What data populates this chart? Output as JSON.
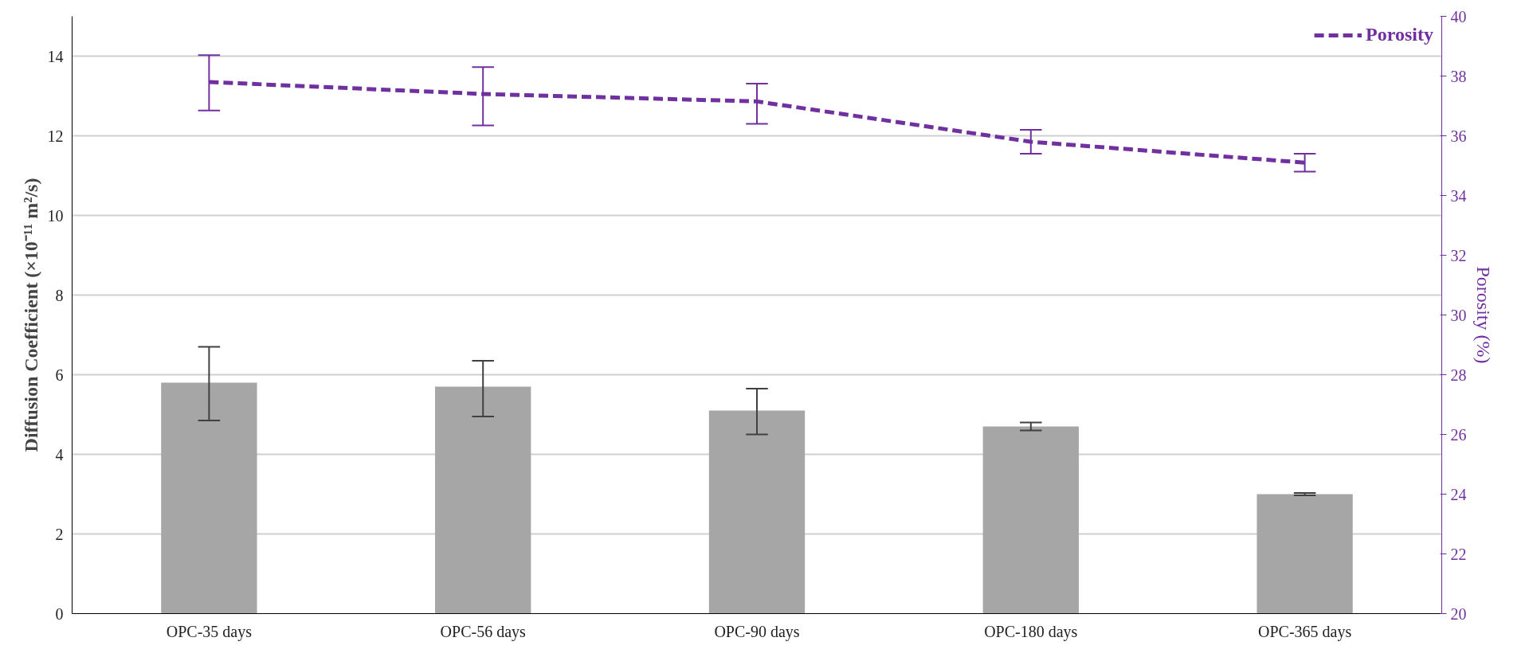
{
  "chart_data": {
    "type": "bar",
    "categories": [
      "OPC-35 days",
      "OPC-56 days",
      "OPC-90 days",
      "OPC-180 days",
      "OPC-365 days"
    ],
    "ylabel": "Diffusion Coefficient (×10⁻¹¹ m²/s)",
    "y2label": "Porosity (%)",
    "ylim": [
      0,
      15
    ],
    "yticks": [
      0,
      2,
      4,
      6,
      8,
      10,
      12,
      14
    ],
    "y2lim": [
      20,
      40
    ],
    "y2ticks": [
      20,
      22,
      24,
      26,
      28,
      30,
      32,
      34,
      36,
      38,
      40
    ],
    "grid": "y",
    "legend": "top right",
    "series": [
      {
        "color": "#a6a6a6",
        "values": [
          5.8,
          5.7,
          5.1,
          4.7,
          3.0
        ],
        "errors": [
          [
            4.85,
            6.7
          ],
          [
            4.95,
            6.35
          ],
          [
            4.5,
            5.65
          ],
          [
            4.6,
            4.8
          ],
          [
            2.97,
            3.03
          ]
        ]
      },
      {
        "type": "line",
        "name": "Porosity",
        "axis": "y2",
        "color": "#7030a0",
        "line_style": "dashed",
        "values": [
          37.8,
          37.4,
          37.15,
          35.8,
          35.1
        ],
        "errors": [
          [
            36.85,
            38.7
          ],
          [
            36.35,
            38.3
          ],
          [
            36.4,
            37.75
          ],
          [
            35.4,
            36.2
          ],
          [
            34.8,
            35.4
          ]
        ]
      }
    ]
  }
}
